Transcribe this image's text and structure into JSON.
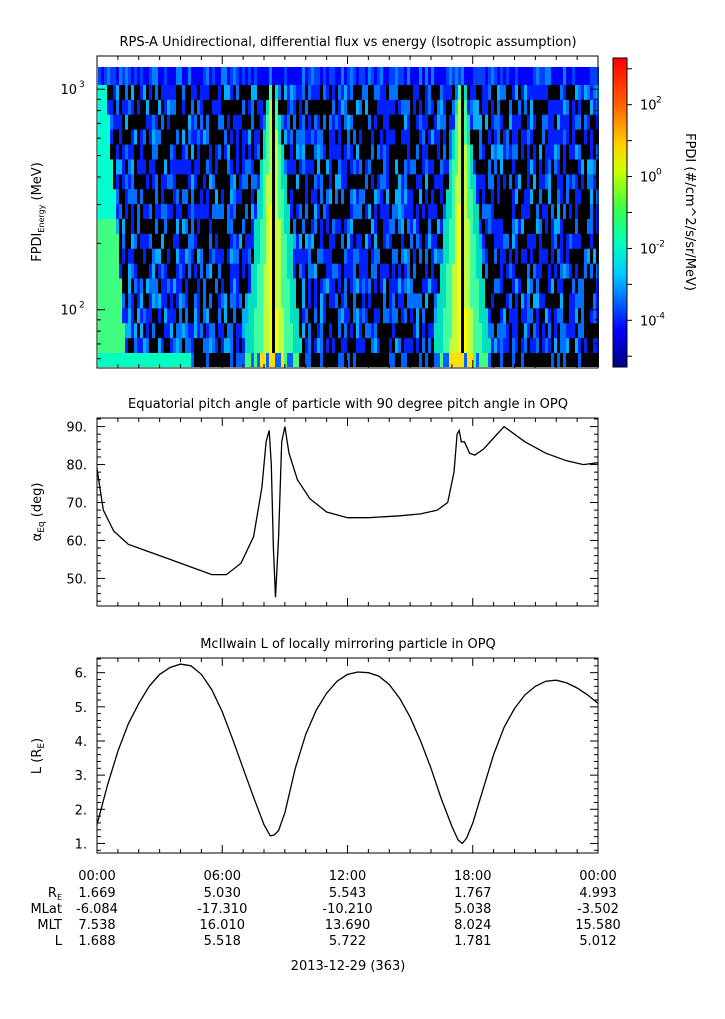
{
  "chart_data": [
    {
      "type": "heatmap",
      "title": "RPS-A Unidirectional, differential flux vs energy (Isotropic assumption)",
      "ylabel_main": "FPDI",
      "ylabel_sub": "Energy",
      "ylabel_unit": " (MeV)",
      "yscale": "log",
      "ylim": [
        55,
        1400
      ],
      "yticks": [
        {
          "v": 100,
          "label": "10",
          "sup": "2"
        },
        {
          "v": 1000,
          "label": "10",
          "sup": "3"
        }
      ],
      "colorbar": {
        "label": "FPDI (#/cm^2/s/sr/MeV)",
        "scale": "log",
        "range_log": [
          -5.3,
          3.3
        ],
        "ticks": [
          {
            "v": -4,
            "label": "10",
            "sup": "-4"
          },
          {
            "v": -2,
            "label": "10",
            "sup": "-2"
          },
          {
            "v": 0,
            "label": "10",
            "sup": "0"
          },
          {
            "v": 2,
            "label": "10",
            "sup": "2"
          }
        ]
      },
      "description_bins": 18
    },
    {
      "type": "line",
      "title": "Equatorial pitch angle of particle with 90 degree pitch angle in OPQ",
      "ylabel_main": "α",
      "ylabel_sub": "Eq",
      "ylabel_unit": " (deg)",
      "ylim": [
        43,
        92
      ],
      "yticks": [
        50,
        60,
        70,
        80,
        90
      ],
      "tick_labels": [
        "50.",
        "60.",
        "70.",
        "80.",
        "90."
      ],
      "x_hours": [
        0,
        0.3,
        0.8,
        1.5,
        2.5,
        3.5,
        4.5,
        5.5,
        6.2,
        6.9,
        7.5,
        7.9,
        8.1,
        8.25,
        8.35,
        8.45,
        8.55,
        8.7,
        8.85,
        9.0,
        9.2,
        9.6,
        10.2,
        11.0,
        12.0,
        13.0,
        14.5,
        15.5,
        16.3,
        16.8,
        17.1,
        17.25,
        17.35,
        17.45,
        17.6,
        17.85,
        18.1,
        18.5,
        19.0,
        19.5,
        20.5,
        21.5,
        22.5,
        23.3,
        24.0
      ],
      "y_deg": [
        79,
        68,
        62.5,
        59,
        57,
        55,
        53,
        51,
        51,
        54,
        61,
        74,
        86,
        89,
        80,
        58,
        45,
        61,
        86,
        90,
        83,
        76,
        71,
        67.5,
        66,
        66,
        66.5,
        67,
        68,
        70,
        78,
        88,
        89,
        86,
        86,
        83,
        82.5,
        84,
        87,
        90,
        86,
        83,
        81,
        80,
        80.5
      ]
    },
    {
      "type": "line",
      "title": "McIlwain L of locally mirroring particle in OPQ",
      "ylabel_main": "L (R",
      "ylabel_sub": "E",
      "ylabel_unit": ")",
      "ylim": [
        0.75,
        6.4
      ],
      "yticks": [
        1,
        2,
        3,
        4,
        5,
        6
      ],
      "tick_labels": [
        "1.",
        "2.",
        "3.",
        "4.",
        "5.",
        "6."
      ],
      "x_hours": [
        0,
        0.5,
        1,
        1.5,
        2,
        2.5,
        3,
        3.5,
        4,
        4.5,
        5,
        5.5,
        6,
        6.5,
        7,
        7.5,
        8,
        8.3,
        8.5,
        8.7,
        9,
        9.5,
        10,
        10.5,
        11,
        11.5,
        12,
        12.5,
        13,
        13.5,
        14,
        14.5,
        15,
        15.5,
        16,
        16.5,
        17,
        17.3,
        17.5,
        17.7,
        18,
        18.5,
        19,
        19.5,
        20,
        20.5,
        21,
        21.5,
        22,
        22.5,
        23,
        23.5,
        24
      ],
      "y_L": [
        1.55,
        2.7,
        3.7,
        4.5,
        5.1,
        5.6,
        5.95,
        6.15,
        6.25,
        6.2,
        5.95,
        5.5,
        4.85,
        4.05,
        3.2,
        2.35,
        1.55,
        1.22,
        1.25,
        1.38,
        1.9,
        3.2,
        4.2,
        4.9,
        5.4,
        5.75,
        5.95,
        6.02,
        6.0,
        5.9,
        5.65,
        5.25,
        4.7,
        4.0,
        3.2,
        2.3,
        1.5,
        1.1,
        1.0,
        1.15,
        1.6,
        2.6,
        3.6,
        4.4,
        4.95,
        5.35,
        5.6,
        5.75,
        5.78,
        5.7,
        5.55,
        5.35,
        5.1
      ]
    }
  ],
  "xaxis": {
    "range_hours": [
      0,
      24
    ],
    "tick_hours": [
      0,
      6,
      12,
      18,
      24
    ],
    "tick_labels": [
      "00:00",
      "06:00",
      "12:00",
      "18:00",
      "00:00"
    ],
    "date_label": "2013-12-29 (363)"
  },
  "ephemeris": {
    "rows": [
      {
        "label": "R",
        "label_sub": "E",
        "values": [
          "1.669",
          "5.030",
          "5.543",
          "1.767",
          "4.993"
        ]
      },
      {
        "label": "MLat",
        "label_sub": "",
        "values": [
          "-6.084",
          "-17.310",
          "-10.210",
          "5.038",
          "-3.502"
        ]
      },
      {
        "label": "MLT",
        "label_sub": "",
        "values": [
          "7.538",
          "16.010",
          "13.690",
          "8.024",
          "15.580"
        ]
      },
      {
        "label": "L",
        "label_sub": "",
        "values": [
          "1.688",
          "5.518",
          "5.722",
          "1.781",
          "5.012"
        ]
      }
    ]
  }
}
